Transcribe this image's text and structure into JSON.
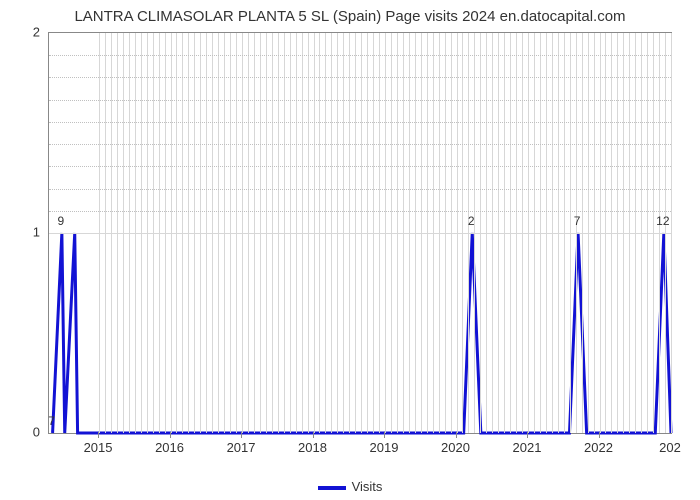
{
  "title": "LANTRA CLIMASOLAR PLANTA 5 SL (Spain) Page visits 2024 en.datocapital.com",
  "chart": {
    "type": "line",
    "background_color": "#ffffff",
    "grid_color": "#d7d7d7",
    "axis_color": "#888888",
    "title_fontsize": 15,
    "xlim": [
      2014.3,
      2023.0
    ],
    "ylim": [
      0,
      2
    ],
    "x_ticks": [
      2015,
      2016,
      2017,
      2018,
      2019,
      2020,
      2021,
      2022
    ],
    "x_minor_step": 0.0833,
    "y_ticks": [
      0,
      1,
      2
    ],
    "y_minor_dotted_count": 8,
    "series": {
      "name": "Visits",
      "color": "#1212d4",
      "line_width": 3,
      "fill_opacity": 0,
      "points": [
        {
          "x": 2014.35,
          "y": 0,
          "label": "7"
        },
        {
          "x": 2014.48,
          "y": 1,
          "label": "9"
        },
        {
          "x": 2014.52,
          "y": 0,
          "label": ""
        },
        {
          "x": 2014.66,
          "y": 1,
          "label": ""
        },
        {
          "x": 2014.7,
          "y": 0,
          "label": ""
        },
        {
          "x": 2020.1,
          "y": 0,
          "label": ""
        },
        {
          "x": 2020.22,
          "y": 1,
          "label": "2"
        },
        {
          "x": 2020.34,
          "y": 0,
          "label": ""
        },
        {
          "x": 2021.58,
          "y": 0,
          "label": ""
        },
        {
          "x": 2021.7,
          "y": 1,
          "label": "7"
        },
        {
          "x": 2021.82,
          "y": 0,
          "label": ""
        },
        {
          "x": 2022.78,
          "y": 0,
          "label": ""
        },
        {
          "x": 2022.9,
          "y": 1,
          "label": "12"
        },
        {
          "x": 2023.0,
          "y": 0,
          "label": ""
        }
      ]
    },
    "end_tick_label": "202",
    "legend_label": "Visits"
  }
}
